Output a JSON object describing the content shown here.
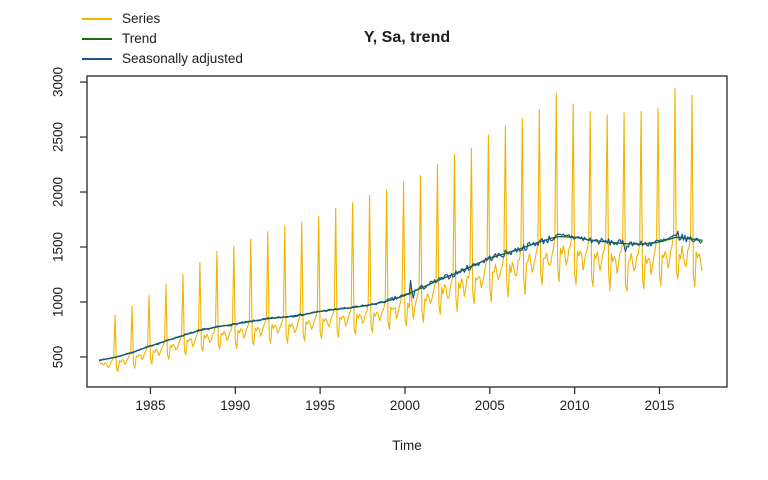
{
  "chart_data": {
    "type": "line",
    "title": "Y, Sa, trend",
    "xlabel": "Time",
    "ylabel": "",
    "legend_position": "topleft",
    "grid": false,
    "x_ticks": [
      1985,
      1990,
      1995,
      2000,
      2005,
      2010,
      2015
    ],
    "y_ticks": [
      500,
      1000,
      1500,
      2000,
      2500,
      3000
    ],
    "xlim": [
      1981.26,
      2018.98
    ],
    "ylim": [
      227,
      3055
    ],
    "start_year": 1982,
    "frequency": 12,
    "n_points": 427,
    "axis_color": "#262626",
    "series": [
      {
        "name": "Series",
        "color": "#F0B400",
        "description": "monthly raw series, strong December peaks",
        "monthly_seasonal_factors": [
          0.8,
          0.73,
          0.92,
          0.89,
          0.93,
          0.9,
          0.83,
          0.86,
          0.92,
          0.95,
          1.01,
          1.85
        ],
        "start_overrides": [
          0.97,
          0.93
        ],
        "december_peak_values": [
          880,
          960,
          1060,
          1160,
          1250,
          1360,
          1460,
          1510,
          1570,
          1640,
          1690,
          1730,
          1780,
          1850,
          1905,
          1970,
          2020,
          2090,
          2150,
          2250,
          2340,
          2400,
          2520,
          2600,
          2670,
          2750,
          2900,
          2800,
          2730,
          2700,
          2720,
          2730,
          2760,
          2940,
          2880
        ]
      },
      {
        "name": "Trend",
        "color": "#1E6C0B",
        "description": "smooth trend, one knot per January 1982-2018",
        "annual_trend_values": [
          470,
          500,
          545,
          600,
          650,
          700,
          745,
          775,
          800,
          825,
          850,
          865,
          885,
          915,
          935,
          950,
          975,
          1010,
          1060,
          1130,
          1200,
          1260,
          1330,
          1400,
          1445,
          1495,
          1550,
          1595,
          1590,
          1560,
          1545,
          1530,
          1525,
          1545,
          1590,
          1570,
          1550
        ]
      },
      {
        "name": "Seasonally adjusted",
        "color": "#155692",
        "description": "trend plus irregular component",
        "noise_seed": 7,
        "noise_amplitude_early": 0.011,
        "noise_amplitude_late": 0.021,
        "noise_change_year": 1999,
        "events": [
          {
            "year": 2000,
            "month": 5,
            "delta": 0.09
          },
          {
            "year": 2000,
            "month": 7,
            "delta": -0.04
          },
          {
            "year": 2009,
            "month": 9,
            "delta": 0.02
          },
          {
            "year": 2013,
            "month": 1,
            "delta": -0.045
          },
          {
            "year": 2013,
            "month": 7,
            "delta": 0.03
          },
          {
            "year": 2016,
            "month": 2,
            "delta": 0.03
          }
        ]
      }
    ]
  }
}
